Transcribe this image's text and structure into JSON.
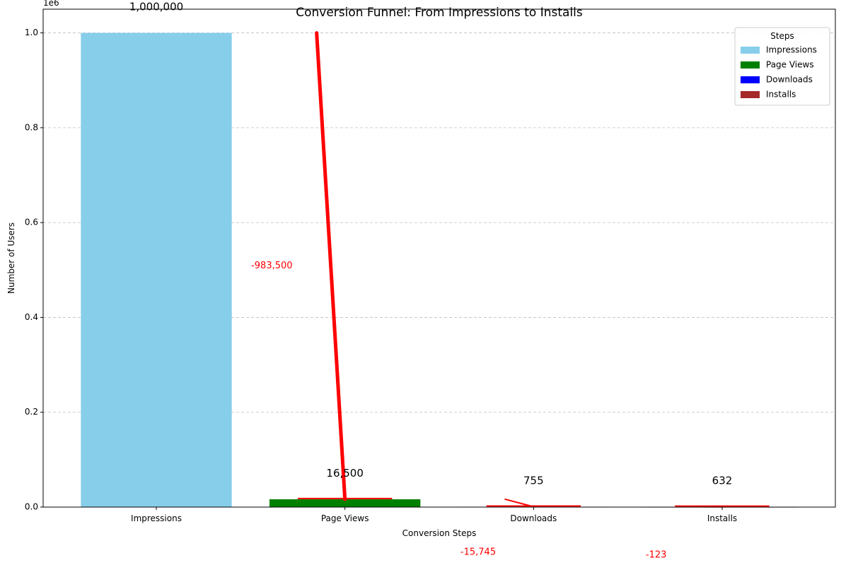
{
  "chart_data": {
    "type": "bar",
    "title": "Conversion Funnel: From Impressions to Installs",
    "xlabel": "Conversion Steps",
    "ylabel": "Number of Users",
    "y_scale_label": "1e6",
    "ylim": [
      0,
      1050000
    ],
    "yticks": [
      0,
      200000,
      400000,
      600000,
      800000,
      1000000
    ],
    "ytick_labels": [
      "0.0",
      "0.2",
      "0.4",
      "0.6",
      "0.8",
      "1.0"
    ],
    "grid": "y-dashed",
    "categories": [
      "Impressions",
      "Page Views",
      "Downloads",
      "Installs"
    ],
    "values": [
      1000000,
      16500,
      755,
      632
    ],
    "value_labels": [
      "1,000,000",
      "16,500",
      "755",
      "632"
    ],
    "colors": [
      "#87ceeb",
      "#008000",
      "#0000ff",
      "#a52a2a"
    ],
    "drop_labels": [
      "-983,500",
      "-15,745",
      "-123"
    ],
    "drop_color": "#ff0000",
    "legend": {
      "title": "Steps",
      "placement": "top-right",
      "entries": [
        "Impressions",
        "Page Views",
        "Downloads",
        "Installs"
      ]
    }
  }
}
